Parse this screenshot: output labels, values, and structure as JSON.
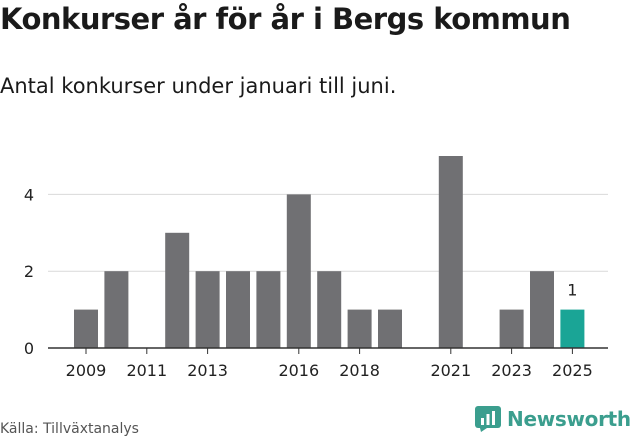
{
  "title": "Konkurser år för år i Bergs kommun",
  "subtitle": "Antal konkurser under januari till juni.",
  "source": "Källa: Tillväxtanalys",
  "brand": {
    "name": "Newsworthy",
    "icon": "newsworthy-logo-icon"
  },
  "colors": {
    "bar": "#707073",
    "highlight": "#1aa596",
    "grid": "#d9d9d9",
    "axis": "#333333"
  },
  "chart_data": {
    "type": "bar",
    "x": [
      2009,
      2010,
      2011,
      2012,
      2013,
      2014,
      2015,
      2016,
      2017,
      2018,
      2019,
      2020,
      2021,
      2022,
      2023,
      2024,
      2025
    ],
    "values": [
      1,
      2,
      0,
      3,
      2,
      2,
      2,
      4,
      2,
      1,
      1,
      null,
      5,
      0,
      1,
      2,
      1
    ],
    "x_tick_labels": [
      "2009",
      "2011",
      "2013",
      "2016",
      "2018",
      "2021",
      "2023",
      "2025"
    ],
    "y_ticks": [
      0,
      2,
      4
    ],
    "ylim": [
      0,
      5
    ],
    "grid": true,
    "highlight_x": 2025,
    "data_labels": [
      {
        "x": 2025,
        "text": "1"
      }
    ],
    "title": "Konkurser år för år i Bergs kommun",
    "xlabel": "",
    "ylabel": ""
  }
}
